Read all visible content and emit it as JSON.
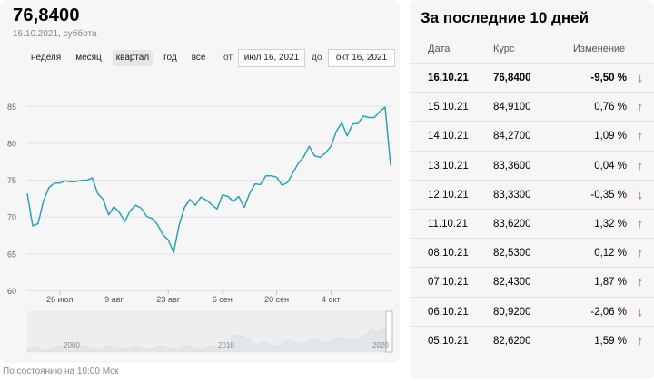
{
  "header": {
    "price": "76,8400",
    "date": "16.10.2021, суббота"
  },
  "periods": [
    "неделя",
    "месяц",
    "квартал",
    "год",
    "всё"
  ],
  "active_period": "квартал",
  "range": {
    "from_label": "от",
    "from_value": "июл 16, 2021",
    "to_label": "до",
    "to_value": "окт 16, 2021"
  },
  "chart_data": {
    "type": "line",
    "title": "",
    "xlabel": "",
    "ylabel": "",
    "ylim": [
      60,
      87
    ],
    "yticks": [
      60,
      65,
      70,
      75,
      80,
      85
    ],
    "xticks": [
      {
        "label": "26 июл",
        "index": 6
      },
      {
        "label": "9 авг",
        "index": 16
      },
      {
        "label": "23 авг",
        "index": 26
      },
      {
        "label": "6 сен",
        "index": 36
      },
      {
        "label": "20 сен",
        "index": 46
      },
      {
        "label": "4 окт",
        "index": 56
      }
    ],
    "color": "#2aa3b8",
    "grid": true,
    "series": [
      {
        "values": [
          73.2,
          68.8,
          69.1,
          72.2,
          74.0,
          74.6,
          74.6,
          74.9,
          74.8,
          74.8,
          75.0,
          75.0,
          75.3,
          73.2,
          72.4,
          70.3,
          71.4,
          70.6,
          69.4,
          70.9,
          71.6,
          71.2,
          70.1,
          69.8,
          69.0,
          67.6,
          66.9,
          65.2,
          68.9,
          71.3,
          72.4,
          71.6,
          72.7,
          72.3,
          71.7,
          71.1,
          73.0,
          72.8,
          72.1,
          72.8,
          71.3,
          73.2,
          74.5,
          74.4,
          75.6,
          75.6,
          75.4,
          74.3,
          74.7,
          76.0,
          77.3,
          78.2,
          79.6,
          78.3,
          78.1,
          78.7,
          79.6,
          81.6,
          82.8,
          81.0,
          82.6,
          82.7,
          83.7,
          83.5,
          83.5,
          84.3,
          84.9,
          77.0
        ]
      }
    ]
  },
  "navigator": {
    "labels": [
      "2000",
      "2010",
      "2020"
    ]
  },
  "status": "По состоянию на 10:00 Мск",
  "table": {
    "title": "За последние 10 дней",
    "headers": {
      "date": "Дата",
      "rate": "Курс",
      "change": "Изменение"
    },
    "up_color": "#22a541",
    "down_color": "#d92b2b",
    "rows": [
      {
        "date": "16.10.21",
        "rate": "76,8400",
        "change": "-9,50 %",
        "arrow": "↓",
        "dir": "down"
      },
      {
        "date": "15.10.21",
        "rate": "84,9100",
        "change": "0,76 %",
        "arrow": "↑",
        "dir": "up"
      },
      {
        "date": "14.10.21",
        "rate": "84,2700",
        "change": "1,09 %",
        "arrow": "↑",
        "dir": "up"
      },
      {
        "date": "13.10.21",
        "rate": "83,3600",
        "change": "0,04 %",
        "arrow": "↑",
        "dir": "up"
      },
      {
        "date": "12.10.21",
        "rate": "83,3300",
        "change": "-0,35 %",
        "arrow": "↓",
        "dir": "down"
      },
      {
        "date": "11.10.21",
        "rate": "83,6200",
        "change": "1,32 %",
        "arrow": "↑",
        "dir": "up"
      },
      {
        "date": "08.10.21",
        "rate": "82,5300",
        "change": "0,12 %",
        "arrow": "↑",
        "dir": "up"
      },
      {
        "date": "07.10.21",
        "rate": "82,4300",
        "change": "1,87 %",
        "arrow": "↑",
        "dir": "up"
      },
      {
        "date": "06.10.21",
        "rate": "80,9200",
        "change": "-2,06 %",
        "arrow": "↓",
        "dir": "down"
      },
      {
        "date": "05.10.21",
        "rate": "82,6200",
        "change": "1,59 %",
        "arrow": "↑",
        "dir": "up"
      }
    ]
  }
}
